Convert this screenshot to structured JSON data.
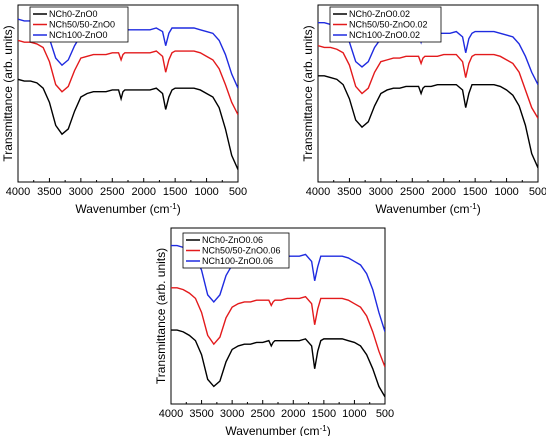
{
  "chart_data": [
    {
      "type": "line",
      "xlabel": "Wavenumber (cm",
      "xlabel_sup": "-1",
      "xlabel_close": ")",
      "ylabel": "Transmittance (arb. units)",
      "xlim": [
        4000,
        500
      ],
      "x_ticks": [
        "4000",
        "3500",
        "3000",
        "2500",
        "2000",
        "1500",
        "1000",
        "500"
      ],
      "legend_position": "top-left",
      "grid": false,
      "series": [
        {
          "name": "NCh0-ZnO0",
          "color": "#000000",
          "x": [
            4000,
            3900,
            3800,
            3700,
            3600,
            3500,
            3400,
            3300,
            3200,
            3100,
            3000,
            2900,
            2800,
            2700,
            2600,
            2500,
            2400,
            2360,
            2330,
            2300,
            2200,
            2100,
            2000,
            1900,
            1800,
            1700,
            1650,
            1600,
            1550,
            1500,
            1400,
            1300,
            1200,
            1100,
            1000,
            900,
            800,
            700,
            600,
            500
          ],
          "y": [
            0.58,
            0.57,
            0.57,
            0.56,
            0.53,
            0.45,
            0.32,
            0.27,
            0.3,
            0.4,
            0.48,
            0.5,
            0.51,
            0.51,
            0.51,
            0.52,
            0.52,
            0.47,
            0.51,
            0.52,
            0.52,
            0.52,
            0.52,
            0.52,
            0.53,
            0.5,
            0.41,
            0.48,
            0.52,
            0.53,
            0.53,
            0.53,
            0.53,
            0.52,
            0.5,
            0.48,
            0.42,
            0.3,
            0.15,
            0.07
          ]
        },
        {
          "name": "NCh50/50-ZnO0",
          "color": "#e31a1c",
          "x": [
            4000,
            3900,
            3800,
            3700,
            3600,
            3500,
            3400,
            3300,
            3200,
            3100,
            3000,
            2900,
            2800,
            2700,
            2600,
            2500,
            2400,
            2360,
            2330,
            2300,
            2200,
            2100,
            2000,
            1900,
            1800,
            1700,
            1650,
            1600,
            1550,
            1500,
            1400,
            1300,
            1200,
            1100,
            1000,
            900,
            800,
            700,
            600,
            500
          ],
          "y": [
            0.8,
            0.79,
            0.79,
            0.78,
            0.76,
            0.68,
            0.55,
            0.51,
            0.54,
            0.63,
            0.7,
            0.71,
            0.72,
            0.72,
            0.72,
            0.73,
            0.73,
            0.69,
            0.72,
            0.73,
            0.73,
            0.73,
            0.73,
            0.73,
            0.74,
            0.71,
            0.62,
            0.69,
            0.73,
            0.74,
            0.74,
            0.74,
            0.74,
            0.73,
            0.71,
            0.69,
            0.64,
            0.55,
            0.45,
            0.38
          ]
        },
        {
          "name": "NCh100-ZnO0",
          "color": "#1f2be0",
          "x": [
            4000,
            3900,
            3800,
            3700,
            3600,
            3500,
            3400,
            3300,
            3200,
            3100,
            3000,
            2900,
            2800,
            2700,
            2600,
            2500,
            2400,
            2360,
            2330,
            2300,
            2200,
            2100,
            2000,
            1900,
            1800,
            1700,
            1650,
            1600,
            1550,
            1500,
            1400,
            1300,
            1200,
            1100,
            1000,
            900,
            800,
            700,
            600,
            500
          ],
          "y": [
            0.92,
            0.91,
            0.91,
            0.9,
            0.88,
            0.81,
            0.7,
            0.66,
            0.69,
            0.77,
            0.83,
            0.84,
            0.85,
            0.85,
            0.85,
            0.86,
            0.86,
            0.82,
            0.85,
            0.86,
            0.86,
            0.86,
            0.86,
            0.86,
            0.87,
            0.85,
            0.77,
            0.84,
            0.87,
            0.87,
            0.87,
            0.87,
            0.87,
            0.86,
            0.85,
            0.84,
            0.8,
            0.72,
            0.61,
            0.53
          ]
        }
      ]
    },
    {
      "type": "line",
      "xlabel": "Wavenumber (cm",
      "xlabel_sup": "-1",
      "xlabel_close": ")",
      "ylabel": "Transmittance (arb. units)",
      "xlim": [
        4000,
        500
      ],
      "x_ticks": [
        "4000",
        "3500",
        "3000",
        "2500",
        "2000",
        "1500",
        "1000",
        "500"
      ],
      "legend_position": "top-left",
      "grid": false,
      "series": [
        {
          "name": "NCh0-ZnO0.02",
          "color": "#000000",
          "x": [
            4000,
            3900,
            3800,
            3700,
            3600,
            3500,
            3400,
            3300,
            3200,
            3100,
            3000,
            2900,
            2800,
            2700,
            2600,
            2500,
            2400,
            2360,
            2330,
            2300,
            2200,
            2100,
            2000,
            1900,
            1800,
            1700,
            1650,
            1600,
            1550,
            1500,
            1400,
            1300,
            1200,
            1100,
            1000,
            900,
            800,
            700,
            600,
            500
          ],
          "y": [
            0.6,
            0.6,
            0.59,
            0.58,
            0.55,
            0.47,
            0.35,
            0.31,
            0.34,
            0.43,
            0.5,
            0.52,
            0.53,
            0.53,
            0.54,
            0.54,
            0.54,
            0.5,
            0.53,
            0.54,
            0.54,
            0.55,
            0.55,
            0.55,
            0.55,
            0.52,
            0.42,
            0.5,
            0.55,
            0.55,
            0.55,
            0.55,
            0.55,
            0.54,
            0.52,
            0.49,
            0.43,
            0.32,
            0.16,
            0.08
          ]
        },
        {
          "name": "NCh50/50-ZnO0.02",
          "color": "#e31a1c",
          "x": [
            4000,
            3900,
            3800,
            3700,
            3600,
            3500,
            3400,
            3300,
            3200,
            3100,
            3000,
            2900,
            2800,
            2700,
            2600,
            2500,
            2400,
            2360,
            2330,
            2300,
            2200,
            2100,
            2000,
            1900,
            1800,
            1700,
            1650,
            1600,
            1550,
            1500,
            1400,
            1300,
            1200,
            1100,
            1000,
            900,
            800,
            700,
            600,
            500
          ],
          "y": [
            0.77,
            0.76,
            0.76,
            0.75,
            0.73,
            0.66,
            0.54,
            0.5,
            0.53,
            0.62,
            0.68,
            0.69,
            0.7,
            0.7,
            0.71,
            0.71,
            0.71,
            0.67,
            0.7,
            0.71,
            0.71,
            0.71,
            0.72,
            0.72,
            0.72,
            0.68,
            0.59,
            0.67,
            0.71,
            0.72,
            0.72,
            0.72,
            0.72,
            0.71,
            0.69,
            0.67,
            0.62,
            0.52,
            0.42,
            0.36
          ]
        },
        {
          "name": "NCh100-ZnO0.02",
          "color": "#1f2be0",
          "x": [
            4000,
            3900,
            3800,
            3700,
            3600,
            3500,
            3400,
            3300,
            3200,
            3100,
            3000,
            2900,
            2800,
            2700,
            2600,
            2500,
            2400,
            2360,
            2330,
            2300,
            2200,
            2100,
            2000,
            1900,
            1800,
            1700,
            1650,
            1600,
            1550,
            1500,
            1400,
            1300,
            1200,
            1100,
            1000,
            900,
            800,
            700,
            600,
            500
          ],
          "y": [
            0.9,
            0.9,
            0.89,
            0.88,
            0.86,
            0.79,
            0.68,
            0.65,
            0.68,
            0.76,
            0.81,
            0.82,
            0.83,
            0.83,
            0.84,
            0.84,
            0.84,
            0.79,
            0.83,
            0.84,
            0.84,
            0.84,
            0.84,
            0.84,
            0.85,
            0.82,
            0.73,
            0.81,
            0.84,
            0.85,
            0.85,
            0.85,
            0.85,
            0.84,
            0.83,
            0.82,
            0.78,
            0.71,
            0.62,
            0.55
          ]
        }
      ]
    },
    {
      "type": "line",
      "xlabel": "Wavenumber (cm",
      "xlabel_sup": "-1",
      "xlabel_close": ")",
      "ylabel": "Transmittance (arb. units)",
      "xlim": [
        4000,
        500
      ],
      "x_ticks": [
        "4000",
        "3500",
        "3000",
        "2500",
        "2000",
        "1500",
        "1000",
        "500"
      ],
      "legend_position": "top-left",
      "grid": false,
      "series": [
        {
          "name": "NCh0-ZnO0.06",
          "color": "#000000",
          "x": [
            4000,
            3900,
            3800,
            3700,
            3600,
            3500,
            3400,
            3300,
            3200,
            3100,
            3000,
            2900,
            2800,
            2700,
            2600,
            2500,
            2400,
            2360,
            2330,
            2300,
            2200,
            2100,
            2000,
            1900,
            1800,
            1700,
            1650,
            1600,
            1550,
            1500,
            1400,
            1300,
            1200,
            1100,
            1000,
            900,
            800,
            700,
            600,
            500
          ],
          "y": [
            0.42,
            0.42,
            0.41,
            0.39,
            0.36,
            0.28,
            0.14,
            0.1,
            0.13,
            0.24,
            0.31,
            0.33,
            0.34,
            0.34,
            0.35,
            0.35,
            0.36,
            0.33,
            0.35,
            0.36,
            0.36,
            0.36,
            0.36,
            0.36,
            0.37,
            0.33,
            0.2,
            0.3,
            0.36,
            0.37,
            0.37,
            0.37,
            0.37,
            0.36,
            0.35,
            0.33,
            0.28,
            0.2,
            0.1,
            0.04
          ]
        },
        {
          "name": "NCh50/50-ZnO0.06",
          "color": "#e31a1c",
          "x": [
            4000,
            3900,
            3800,
            3700,
            3600,
            3500,
            3400,
            3300,
            3200,
            3100,
            3000,
            2900,
            2800,
            2700,
            2600,
            2500,
            2400,
            2360,
            2330,
            2300,
            2200,
            2100,
            2000,
            1900,
            1800,
            1700,
            1650,
            1600,
            1550,
            1500,
            1400,
            1300,
            1200,
            1100,
            1000,
            900,
            800,
            700,
            600,
            500
          ],
          "y": [
            0.66,
            0.66,
            0.65,
            0.63,
            0.6,
            0.52,
            0.39,
            0.34,
            0.38,
            0.49,
            0.55,
            0.57,
            0.58,
            0.58,
            0.59,
            0.59,
            0.59,
            0.56,
            0.58,
            0.59,
            0.59,
            0.6,
            0.6,
            0.6,
            0.61,
            0.57,
            0.45,
            0.54,
            0.6,
            0.6,
            0.6,
            0.6,
            0.6,
            0.59,
            0.57,
            0.55,
            0.5,
            0.41,
            0.3,
            0.21
          ]
        },
        {
          "name": "NCh100-ZnO0.06",
          "color": "#1f2be0",
          "x": [
            4000,
            3900,
            3800,
            3700,
            3600,
            3500,
            3400,
            3300,
            3200,
            3100,
            3000,
            2900,
            2800,
            2700,
            2600,
            2500,
            2400,
            2360,
            2330,
            2300,
            2200,
            2100,
            2000,
            1900,
            1800,
            1700,
            1650,
            1600,
            1550,
            1500,
            1400,
            1300,
            1200,
            1100,
            1000,
            900,
            800,
            700,
            600,
            500
          ],
          "y": [
            0.9,
            0.9,
            0.89,
            0.87,
            0.84,
            0.76,
            0.62,
            0.58,
            0.62,
            0.73,
            0.79,
            0.81,
            0.82,
            0.82,
            0.83,
            0.83,
            0.83,
            0.8,
            0.82,
            0.83,
            0.83,
            0.84,
            0.84,
            0.84,
            0.85,
            0.81,
            0.7,
            0.78,
            0.84,
            0.84,
            0.84,
            0.84,
            0.84,
            0.83,
            0.81,
            0.79,
            0.74,
            0.65,
            0.52,
            0.41
          ]
        }
      ]
    }
  ]
}
